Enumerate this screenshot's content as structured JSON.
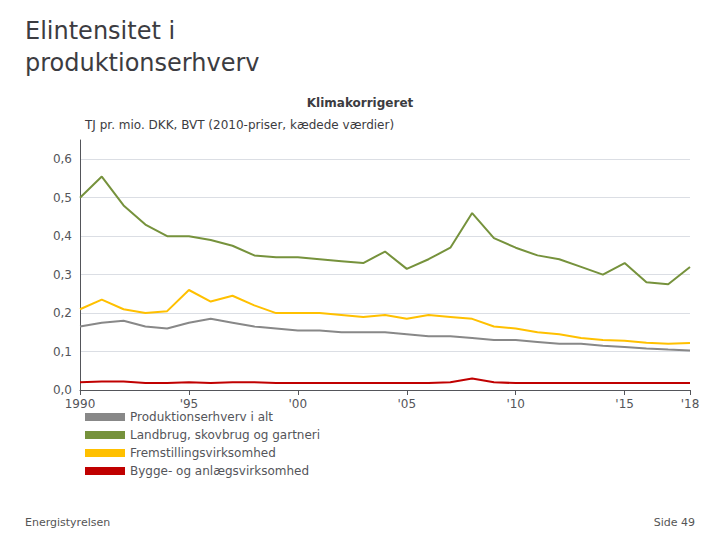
{
  "chart_data": {
    "type": "line",
    "title": "Elintensitet i\nproduktionserhverv",
    "subtitle": "Klimakorrigeret",
    "ylabel": "TJ pr. mio. DKK, BVT (2010-priser, kædede værdier)",
    "annotations": [
      "Energistyrelsen",
      "Side 49"
    ],
    "x": [
      1990,
      1991,
      1992,
      1993,
      1994,
      1995,
      1996,
      1997,
      1998,
      1999,
      2000,
      2001,
      2002,
      2003,
      2004,
      2005,
      2006,
      2007,
      2008,
      2009,
      2010,
      2011,
      2012,
      2013,
      2014,
      2015,
      2016,
      2017,
      2018
    ],
    "series": [
      {
        "name": "Produktionserhverv i alt",
        "color": "#888888",
        "values": [
          0.165,
          0.175,
          0.18,
          0.165,
          0.16,
          0.175,
          0.185,
          0.175,
          0.165,
          0.16,
          0.155,
          0.155,
          0.15,
          0.15,
          0.15,
          0.145,
          0.14,
          0.14,
          0.135,
          0.13,
          0.13,
          0.125,
          0.12,
          0.12,
          0.115,
          0.112,
          0.108,
          0.105,
          0.103
        ]
      },
      {
        "name": "Landbrug, skovbrug og gartneri",
        "color": "#76923c",
        "values": [
          0.5,
          0.555,
          0.48,
          0.43,
          0.4,
          0.4,
          0.39,
          0.375,
          0.35,
          0.345,
          0.345,
          0.34,
          0.335,
          0.33,
          0.36,
          0.315,
          0.34,
          0.37,
          0.46,
          0.395,
          0.37,
          0.35,
          0.34,
          0.32,
          0.3,
          0.33,
          0.28,
          0.275,
          0.32
        ]
      },
      {
        "name": "Fremstillingsvirksomhed",
        "color": "#ffc000",
        "values": [
          0.21,
          0.235,
          0.21,
          0.2,
          0.205,
          0.26,
          0.23,
          0.245,
          0.22,
          0.2,
          0.2,
          0.2,
          0.195,
          0.19,
          0.195,
          0.185,
          0.195,
          0.19,
          0.185,
          0.165,
          0.16,
          0.15,
          0.145,
          0.135,
          0.13,
          0.128,
          0.123,
          0.12,
          0.122
        ]
      },
      {
        "name": "Bygge- og anlægsvirksomhed",
        "color": "#c00000",
        "values": [
          0.02,
          0.022,
          0.022,
          0.018,
          0.018,
          0.02,
          0.018,
          0.02,
          0.02,
          0.018,
          0.018,
          0.018,
          0.018,
          0.018,
          0.018,
          0.018,
          0.018,
          0.02,
          0.03,
          0.02,
          0.018,
          0.018,
          0.018,
          0.018,
          0.018,
          0.018,
          0.018,
          0.018,
          0.018
        ]
      }
    ],
    "xlim": [
      1990,
      2018
    ],
    "xticks": [
      1990,
      {
        "value": 1995,
        "label": "'95"
      },
      {
        "value": 2000,
        "label": "'00"
      },
      {
        "value": 2005,
        "label": "'05"
      },
      {
        "value": 2010,
        "label": "'10"
      },
      {
        "value": 2015,
        "label": "'15"
      },
      {
        "value": 2018,
        "label": "'18"
      }
    ],
    "ylim": [
      0.0,
      0.65
    ],
    "yticks": [
      {
        "value": 0.0,
        "label": "0,0"
      },
      {
        "value": 0.1,
        "label": "0,1"
      },
      {
        "value": 0.2,
        "label": "0,2"
      },
      {
        "value": 0.3,
        "label": "0,3"
      },
      {
        "value": 0.4,
        "label": "0,4"
      },
      {
        "value": 0.5,
        "label": "0,5"
      },
      {
        "value": 0.6,
        "label": "0,6"
      }
    ],
    "grid": true,
    "legend": "bottom"
  }
}
